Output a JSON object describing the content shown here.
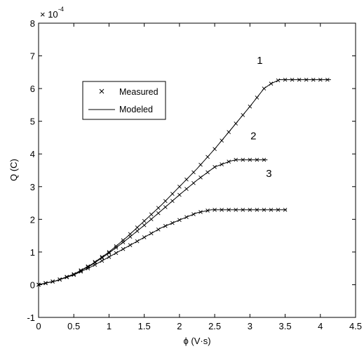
{
  "chart_data": {
    "type": "line",
    "xlabel": "ϕ (V·s)",
    "ylabel": "Q (C)",
    "y_exponent_base": "× 10",
    "y_exponent_power": "-4",
    "xlim": [
      0,
      4.5
    ],
    "ylim": [
      -1,
      8
    ],
    "xticks": [
      0,
      0.5,
      1,
      1.5,
      2,
      2.5,
      3,
      3.5,
      4,
      4.5
    ],
    "xtick_labels": [
      "0",
      "0.5",
      "1",
      "1.5",
      "2",
      "2.5",
      "3",
      "3.5",
      "4",
      "4.5"
    ],
    "yticks": [
      -1,
      0,
      1,
      2,
      3,
      4,
      5,
      6,
      7,
      8
    ],
    "ytick_labels": [
      "-1",
      "0",
      "1",
      "2",
      "3",
      "4",
      "5",
      "6",
      "7",
      "8"
    ],
    "grid": false,
    "legend": {
      "position": "upper-left",
      "entries": [
        {
          "label": "Measured",
          "marker": "x"
        },
        {
          "label": "Modeled",
          "marker": "line"
        }
      ]
    },
    "curve_labels": [
      {
        "text": "1",
        "x": 3.14,
        "y": 6.75
      },
      {
        "text": "2",
        "x": 3.05,
        "y": 4.45
      },
      {
        "text": "3",
        "x": 3.27,
        "y": 3.3
      }
    ],
    "curves": [
      {
        "id": "1",
        "x": [
          0,
          0.25,
          0.5,
          0.75,
          1.0,
          1.25,
          1.5,
          1.75,
          2.0,
          2.25,
          2.5,
          2.75,
          3.0,
          3.2,
          3.3,
          3.42,
          3.6,
          3.8,
          4.0,
          4.15
        ],
        "y": [
          0,
          0.12,
          0.32,
          0.62,
          1.0,
          1.45,
          1.95,
          2.45,
          3.0,
          3.55,
          4.15,
          4.8,
          5.45,
          6.0,
          6.15,
          6.27,
          6.27,
          6.27,
          6.27,
          6.27
        ]
      },
      {
        "id": "2",
        "x": [
          0,
          0.25,
          0.5,
          0.75,
          1.0,
          1.25,
          1.5,
          1.75,
          2.0,
          2.25,
          2.5,
          2.72,
          2.8,
          3.0,
          3.25
        ],
        "y": [
          0,
          0.12,
          0.32,
          0.6,
          0.97,
          1.38,
          1.82,
          2.28,
          2.75,
          3.2,
          3.6,
          3.78,
          3.82,
          3.82,
          3.82
        ],
        "x_measured": [
          0,
          0.1,
          0.2,
          0.3,
          0.4,
          0.5,
          0.6,
          0.7,
          0.8,
          0.9,
          1.0,
          1.1,
          1.2,
          1.3,
          1.4,
          1.5,
          1.6,
          1.7,
          1.8,
          1.9,
          2.0,
          2.1,
          2.2,
          2.3,
          2.4,
          2.5,
          2.6,
          2.7,
          2.8,
          2.9,
          3.0,
          3.1,
          3.2
        ]
      },
      {
        "id": "3",
        "x": [
          0,
          0.25,
          0.5,
          0.75,
          1.0,
          1.25,
          1.5,
          1.75,
          2.0,
          2.25,
          2.45,
          2.5,
          3.0,
          3.52
        ],
        "y": [
          0,
          0.12,
          0.3,
          0.55,
          0.85,
          1.15,
          1.45,
          1.75,
          1.98,
          2.2,
          2.29,
          2.29,
          2.29,
          2.29
        ],
        "x_measured": [
          0,
          0.1,
          0.2,
          0.3,
          0.4,
          0.5,
          0.6,
          0.7,
          0.8,
          0.9,
          1.0,
          1.1,
          1.2,
          1.3,
          1.4,
          1.5,
          1.6,
          1.7,
          1.8,
          1.9,
          2.0,
          2.1,
          2.2,
          2.3,
          2.4,
          2.5,
          2.6,
          2.7,
          2.8,
          2.9,
          3.0,
          3.1,
          3.2,
          3.3,
          3.4,
          3.5
        ]
      }
    ],
    "series": [
      {
        "name": "Measured",
        "style": "x-marker",
        "color": "#000000"
      },
      {
        "name": "Modeled",
        "style": "solid-line",
        "color": "#000000"
      }
    ]
  }
}
